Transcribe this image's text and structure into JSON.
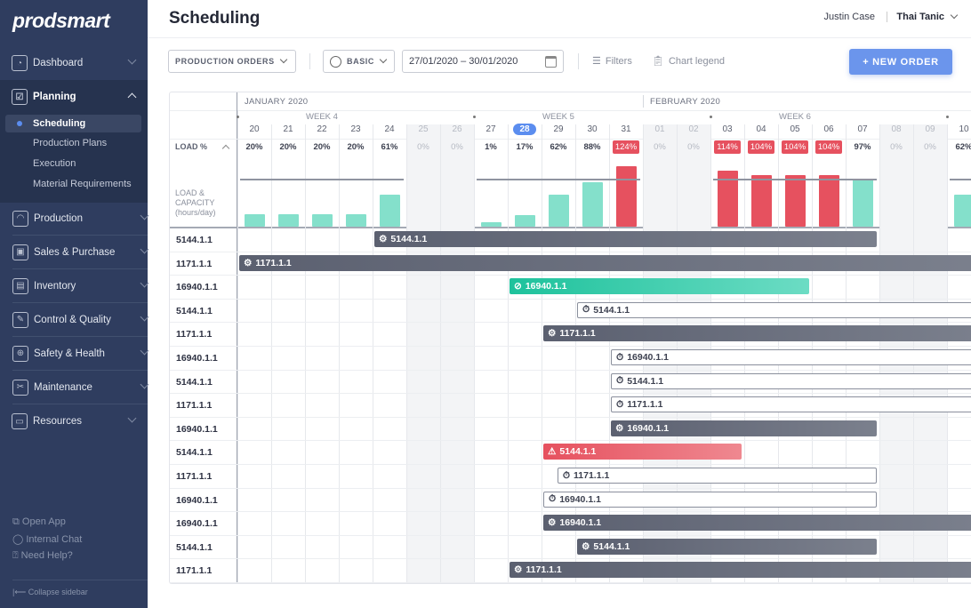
{
  "brand": "prodsmart",
  "sidebar": {
    "items": [
      {
        "label": "Dashboard",
        "icon": "dashboard-icon"
      },
      {
        "label": "Planning",
        "icon": "planning-icon",
        "expanded": true
      },
      {
        "label": "Production",
        "icon": "gauge-icon"
      },
      {
        "label": "Sales & Purchase",
        "icon": "box-icon"
      },
      {
        "label": "Inventory",
        "icon": "trolley-icon"
      },
      {
        "label": "Control & Quality",
        "icon": "clipboard-icon"
      },
      {
        "label": "Safety & Health",
        "icon": "shield-icon"
      },
      {
        "label": "Maintenance",
        "icon": "tools-icon"
      },
      {
        "label": "Resources",
        "icon": "folders-icon"
      }
    ],
    "planning_sub": [
      "Scheduling",
      "Production Plans",
      "Execution",
      "Material Requirements"
    ],
    "active_sub": "Scheduling",
    "footer": [
      {
        "label": "Open App",
        "icon": "external-link-icon"
      },
      {
        "label": "Internal Chat",
        "icon": "chat-icon"
      },
      {
        "label": "Need Help?",
        "icon": "help-icon"
      }
    ],
    "collapse": "Collapse sidebar"
  },
  "header": {
    "title": "Scheduling",
    "user": "Justin Case",
    "org": "Thai Tanic"
  },
  "toolbar": {
    "view": "PRODUCTION ORDERS",
    "mode": "BASIC",
    "date_range": "27/01/2020 – 30/01/2020",
    "filters": "Filters",
    "legend": "Chart legend",
    "new_order": "+ NEW ORDER"
  },
  "colors": {
    "accent": "#5b8def",
    "ok": "#84e0cb",
    "over": "#e6515f",
    "dark_bar": "#5b6070",
    "green_bar": "#1ec29c"
  },
  "gantt": {
    "months": [
      {
        "label": "JANUARY 2020",
        "first_day": "2020-01-20"
      },
      {
        "label": "FEBRUARY 2020",
        "first_day": "2020-02-01"
      }
    ],
    "weeks": [
      {
        "label": "WEEK 4",
        "first_day": "2020-01-20"
      },
      {
        "label": "WEEK 5",
        "first_day": "2020-01-27"
      },
      {
        "label": "WEEK 6",
        "first_day": "2020-02-03"
      }
    ],
    "load_label": "LOAD %",
    "capacity_label": "LOAD & CAPACITY (hours/day)",
    "today": "28",
    "days": [
      {
        "d": "20",
        "load": 20
      },
      {
        "d": "21",
        "load": 20
      },
      {
        "d": "22",
        "load": 20
      },
      {
        "d": "23",
        "load": 20
      },
      {
        "d": "24",
        "load": 61
      },
      {
        "d": "25",
        "load": 0,
        "weekend": true
      },
      {
        "d": "26",
        "load": 0,
        "weekend": true
      },
      {
        "d": "27",
        "load": 1
      },
      {
        "d": "28",
        "load": 17
      },
      {
        "d": "29",
        "load": 62
      },
      {
        "d": "30",
        "load": 88
      },
      {
        "d": "31",
        "load": 124
      },
      {
        "d": "01",
        "load": 0,
        "weekend": true
      },
      {
        "d": "02",
        "load": 0,
        "weekend": true
      },
      {
        "d": "03",
        "load": 114
      },
      {
        "d": "04",
        "load": 104
      },
      {
        "d": "05",
        "load": 104
      },
      {
        "d": "06",
        "load": 104
      },
      {
        "d": "07",
        "load": 97
      },
      {
        "d": "08",
        "load": 0,
        "weekend": true
      },
      {
        "d": "09",
        "load": 0,
        "weekend": true
      },
      {
        "d": "10",
        "load": 62
      }
    ],
    "rows": [
      {
        "label": "5144.1.1",
        "bar": {
          "label": "5144.1.1",
          "type": "dark",
          "icon": "gear-icon",
          "start": "2020-01-24",
          "end": "2020-02-07"
        }
      },
      {
        "label": "1171.1.1",
        "bar": {
          "label": "1171.1.1",
          "type": "dark",
          "icon": "gear-icon",
          "start": "2020-01-20",
          "end": null
        }
      },
      {
        "label": "16940.1.1",
        "bar": {
          "label": "16940.1.1",
          "type": "green",
          "icon": "check-circle-icon",
          "start": "2020-01-28",
          "end": "2020-02-05"
        }
      },
      {
        "label": "5144.1.1",
        "bar": {
          "label": "5144.1.1",
          "type": "outline",
          "icon": "timer-icon",
          "start": "2020-01-30",
          "end": null
        }
      },
      {
        "label": "1171.1.1",
        "bar": {
          "label": "1171.1.1",
          "type": "dark",
          "icon": "gear-icon",
          "start": "2020-01-29",
          "end": null
        }
      },
      {
        "label": "16940.1.1",
        "bar": {
          "label": "16940.1.1",
          "type": "outline",
          "icon": "timer-icon",
          "start": "2020-01-31",
          "end": null
        }
      },
      {
        "label": "5144.1.1",
        "bar": {
          "label": "5144.1.1",
          "type": "outline",
          "icon": "timer-icon",
          "start": "2020-01-31",
          "end": null
        }
      },
      {
        "label": "1171.1.1",
        "bar": {
          "label": "1171.1.1",
          "type": "outline",
          "icon": "timer-icon",
          "start": "2020-01-31",
          "end": null
        }
      },
      {
        "label": "16940.1.1",
        "bar": {
          "label": "16940.1.1",
          "type": "dark",
          "icon": "gear-icon",
          "start": "2020-01-31",
          "end": "2020-02-07"
        }
      },
      {
        "label": "5144.1.1",
        "bar": {
          "label": "5144.1.1",
          "type": "red",
          "icon": "warning-icon",
          "start": "2020-01-29",
          "end": "2020-02-03"
        }
      },
      {
        "label": "1171.1.1",
        "bar": {
          "label": "1171.1.1",
          "type": "outline",
          "icon": "timer-icon",
          "start": "2020-01-29T10:00",
          "end": "2020-02-07"
        }
      },
      {
        "label": "16940.1.1",
        "bar": {
          "label": "16940.1.1",
          "type": "outline",
          "icon": "timer-icon",
          "start": "2020-01-29",
          "end": "2020-02-07"
        }
      },
      {
        "label": "16940.1.1",
        "bar": {
          "label": "16940.1.1",
          "type": "dark",
          "icon": "gear-icon",
          "start": "2020-01-29",
          "end": null
        }
      },
      {
        "label": "5144.1.1",
        "bar": {
          "label": "5144.1.1",
          "type": "dark",
          "icon": "gear-icon",
          "start": "2020-01-30",
          "end": "2020-02-07"
        }
      },
      {
        "label": "1171.1.1",
        "bar": {
          "label": "1171.1.1",
          "type": "dark",
          "icon": "gear-icon",
          "start": "2020-01-28",
          "end": null
        }
      }
    ]
  }
}
